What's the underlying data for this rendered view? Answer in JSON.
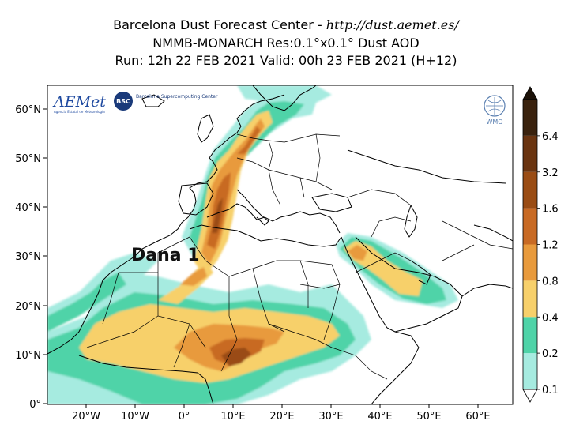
{
  "header": {
    "line1_prefix": "Barcelona Dust Forecast Center - ",
    "line1_url": "http://dust.aemet.es/",
    "line2": "NMMB-MONARCH   Res:0.1°x0.1°   Dust AOD",
    "line3": "Run: 12h 22 FEB 2021   Valid: 00h 23 FEB 2021 (H+12)"
  },
  "map": {
    "lat_ticks": [
      "60°N",
      "50°N",
      "40°N",
      "30°N",
      "20°N",
      "10°N",
      "0°"
    ],
    "lon_ticks": [
      "20°W",
      "10°W",
      "0°",
      "10°E",
      "20°E",
      "30°E",
      "40°E",
      "50°E",
      "60°E"
    ],
    "annotation": "Dana 1",
    "logos": {
      "aemet": "AEMet",
      "aemet_sub": "Agencia Estatal de Meteorología",
      "bsc_badge": "BSC",
      "bsc_name": "Barcelona Supercomputing Center",
      "wmo": "WMO"
    }
  },
  "colorbar": {
    "levels": [
      "0.1",
      "0.2",
      "0.4",
      "0.8",
      "1.2",
      "1.6",
      "3.2",
      "6.4"
    ],
    "colors": [
      "#a6ebe0",
      "#4fd3a8",
      "#f7d06b",
      "#e89a3c",
      "#c86a24",
      "#9a4c14",
      "#6a3410",
      "#3a220e"
    ]
  }
}
